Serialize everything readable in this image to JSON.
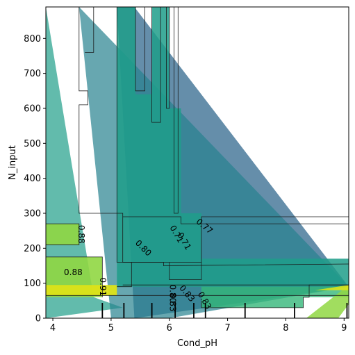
{
  "chart_data": {
    "type": "contour",
    "xlabel": "Cond_pH",
    "ylabel": "N_input",
    "xlim": [
      3.88,
      9.08
    ],
    "ylim": [
      0,
      890
    ],
    "xticks": [
      {
        "value": 4,
        "label": "4"
      },
      {
        "value": 5,
        "label": "5"
      },
      {
        "value": 6,
        "label": "6"
      },
      {
        "value": 7,
        "label": "7"
      },
      {
        "value": 8,
        "label": "8"
      },
      {
        "value": 9,
        "label": "9"
      }
    ],
    "yticks": [
      {
        "value": 0,
        "label": "0"
      },
      {
        "value": 100,
        "label": "100"
      },
      {
        "value": 200,
        "label": "200"
      },
      {
        "value": 300,
        "label": "300"
      },
      {
        "value": 400,
        "label": "400"
      },
      {
        "value": 500,
        "label": "500"
      },
      {
        "value": 600,
        "label": "600"
      },
      {
        "value": 700,
        "label": "700"
      },
      {
        "value": 800,
        "label": "800"
      }
    ],
    "colors": {
      "lvl_071": "#31688e",
      "lvl_074": "#26828e",
      "lvl_077": "#1f9e89",
      "lvl_080": "#35b779",
      "lvl_083": "#6ece58",
      "lvl_086": "#90d743",
      "lvl_088": "#b5de2b",
      "lvl_091": "#dde318",
      "lvl_max": "#fde725",
      "line": "#1a1a1a"
    },
    "regions": [
      {
        "name": "wedge-left",
        "color": "#1f9e89",
        "opacity": 0.7,
        "points": [
          [
            3.88,
            890
          ],
          [
            4.7,
            60
          ],
          [
            5.2,
            30
          ],
          [
            3.88,
            0
          ]
        ]
      },
      {
        "name": "wedge-big-upper",
        "color": "#31688e",
        "opacity": 0.75,
        "points": [
          [
            5.1,
            890
          ],
          [
            5.4,
            890
          ],
          [
            9.08,
            90
          ],
          [
            8.3,
            70
          ],
          [
            5.4,
            0
          ]
        ]
      },
      {
        "name": "wedge-mid",
        "color": "#26828e",
        "opacity": 0.7,
        "points": [
          [
            4.45,
            890
          ],
          [
            9.08,
            90
          ],
          [
            6.0,
            0
          ],
          [
            5.0,
            0
          ]
        ]
      },
      {
        "name": "vertical-band",
        "color": "#1f9e89",
        "opacity": 0.85,
        "points": [
          [
            5.1,
            890
          ],
          [
            5.42,
            890
          ],
          [
            5.42,
            640
          ],
          [
            5.7,
            640
          ],
          [
            5.7,
            890
          ],
          [
            6.0,
            890
          ],
          [
            6.0,
            600
          ],
          [
            6.2,
            600
          ],
          [
            6.2,
            300
          ],
          [
            6.55,
            300
          ],
          [
            6.55,
            170
          ],
          [
            9.08,
            170
          ],
          [
            9.08,
            90
          ],
          [
            5.1,
            90
          ]
        ]
      },
      {
        "name": "block-left-88",
        "color": "#90d743",
        "opacity": 0.9,
        "points": [
          [
            3.88,
            270
          ],
          [
            4.45,
            270
          ],
          [
            4.45,
            210
          ],
          [
            3.88,
            210
          ]
        ]
      },
      {
        "name": "block-left-88b",
        "color": "#90d743",
        "opacity": 0.9,
        "points": [
          [
            3.88,
            175
          ],
          [
            4.85,
            175
          ],
          [
            4.85,
            60
          ],
          [
            3.88,
            60
          ]
        ]
      },
      {
        "name": "block-yellow",
        "color": "#dde318",
        "opacity": 0.95,
        "points": [
          [
            3.88,
            95
          ],
          [
            5.1,
            95
          ],
          [
            5.1,
            65
          ],
          [
            3.88,
            65
          ]
        ]
      },
      {
        "name": "band-right-low",
        "color": "#35b779",
        "opacity": 0.8,
        "points": [
          [
            6.55,
            90
          ],
          [
            9.08,
            90
          ],
          [
            9.08,
            60
          ],
          [
            8.3,
            60
          ],
          [
            8.3,
            30
          ],
          [
            6.55,
            30
          ]
        ]
      },
      {
        "name": "tri-right-green",
        "color": "#90d743",
        "opacity": 0.85,
        "points": [
          [
            8.35,
            0
          ],
          [
            9.08,
            95
          ],
          [
            9.08,
            40
          ],
          [
            8.9,
            0
          ]
        ]
      },
      {
        "name": "tri-right-yellow",
        "color": "#dde318",
        "opacity": 0.9,
        "points": [
          [
            8.5,
            80
          ],
          [
            9.08,
            95
          ],
          [
            9.08,
            80
          ]
        ]
      }
    ],
    "contour_lines": [
      {
        "name": "contour-outline-main",
        "points": [
          [
            4.45,
            890
          ],
          [
            4.45,
            650
          ],
          [
            4.6,
            650
          ],
          [
            4.6,
            610
          ],
          [
            4.45,
            610
          ],
          [
            4.45,
            300
          ],
          [
            5.1,
            300
          ],
          [
            5.1,
            160
          ],
          [
            5.35,
            160
          ],
          [
            5.35,
            90
          ],
          [
            5.1,
            90
          ]
        ]
      },
      {
        "name": "contour-outline-top-left",
        "points": [
          [
            4.45,
            890
          ],
          [
            4.7,
            890
          ],
          [
            4.7,
            760
          ],
          [
            4.55,
            760
          ]
        ]
      },
      {
        "name": "contour-inner-band",
        "points": [
          [
            5.1,
            890
          ],
          [
            5.1,
            300
          ],
          [
            5.2,
            300
          ],
          [
            5.2,
            160
          ],
          [
            6.55,
            160
          ],
          [
            6.55,
            290
          ],
          [
            9.08,
            290
          ]
        ]
      },
      {
        "name": "contour-vertical-1",
        "points": [
          [
            5.42,
            890
          ],
          [
            5.42,
            650
          ],
          [
            5.58,
            650
          ],
          [
            5.58,
            890
          ]
        ]
      },
      {
        "name": "contour-vertical-2",
        "points": [
          [
            5.7,
            890
          ],
          [
            5.7,
            560
          ],
          [
            5.85,
            560
          ],
          [
            5.85,
            890
          ]
        ]
      },
      {
        "name": "contour-vertical-3",
        "points": [
          [
            5.95,
            890
          ],
          [
            5.95,
            600
          ],
          [
            6.0,
            600
          ],
          [
            6.0,
            890
          ]
        ]
      },
      {
        "name": "contour-vertical-4",
        "points": [
          [
            6.08,
            890
          ],
          [
            6.08,
            300
          ],
          [
            6.15,
            300
          ],
          [
            6.15,
            890
          ]
        ]
      },
      {
        "name": "contour-horizontal-upper",
        "points": [
          [
            5.2,
            290
          ],
          [
            6.2,
            290
          ],
          [
            6.2,
            270
          ],
          [
            9.08,
            270
          ]
        ]
      },
      {
        "name": "contour-horizontal-mid",
        "points": [
          [
            5.2,
            160
          ],
          [
            5.9,
            160
          ],
          [
            5.9,
            150
          ],
          [
            9.08,
            155
          ]
        ]
      },
      {
        "name": "contour-horizontal-low",
        "points": [
          [
            5.2,
            95
          ],
          [
            9.08,
            95
          ]
        ]
      },
      {
        "name": "contour-horizontal-base",
        "points": [
          [
            3.88,
            65
          ],
          [
            9.08,
            65
          ]
        ]
      },
      {
        "name": "contour-right-step",
        "points": [
          [
            6.55,
            50
          ],
          [
            6.55,
            30
          ],
          [
            8.3,
            30
          ],
          [
            8.3,
            60
          ],
          [
            8.4,
            60
          ],
          [
            8.4,
            95
          ],
          [
            9.08,
            95
          ]
        ]
      },
      {
        "name": "contour-inner-box",
        "points": [
          [
            6.0,
            160
          ],
          [
            6.0,
            110
          ],
          [
            6.55,
            110
          ],
          [
            6.55,
            160
          ]
        ]
      },
      {
        "name": "contour-left-box-88",
        "points": [
          [
            3.88,
            270
          ],
          [
            4.45,
            270
          ],
          [
            4.45,
            210
          ],
          [
            3.88,
            210
          ]
        ]
      },
      {
        "name": "contour-left-box-91",
        "points": [
          [
            3.88,
            175
          ],
          [
            4.85,
            175
          ],
          [
            4.85,
            60
          ]
        ]
      }
    ],
    "contour_labels": [
      {
        "text": "0.88",
        "x": 4.48,
        "y": 240,
        "rotate": 90
      },
      {
        "text": "0.88",
        "x": 4.35,
        "y": 130,
        "rotate": 0
      },
      {
        "text": "0.91",
        "x": 4.85,
        "y": 90,
        "rotate": 90
      },
      {
        "text": "0.80",
        "x": 5.55,
        "y": 200,
        "rotate": 45
      },
      {
        "text": "0.71",
        "x": 6.12,
        "y": 240,
        "rotate": 60
      },
      {
        "text": "0.71",
        "x": 6.25,
        "y": 220,
        "rotate": 60
      },
      {
        "text": "0.77",
        "x": 6.6,
        "y": 262,
        "rotate": 40
      },
      {
        "text": "0.80",
        "x": 6.05,
        "y": 70,
        "rotate": 90
      },
      {
        "text": "0.83",
        "x": 6.05,
        "y": 45,
        "rotate": 90
      },
      {
        "text": "0.83",
        "x": 6.3,
        "y": 70,
        "rotate": 50
      },
      {
        "text": "0.83",
        "x": 6.6,
        "y": 50,
        "rotate": 60
      }
    ],
    "rug_x": [
      4.85,
      5.22,
      5.7,
      6.1,
      6.42,
      6.62,
      7.3,
      8.15,
      9.05
    ]
  }
}
